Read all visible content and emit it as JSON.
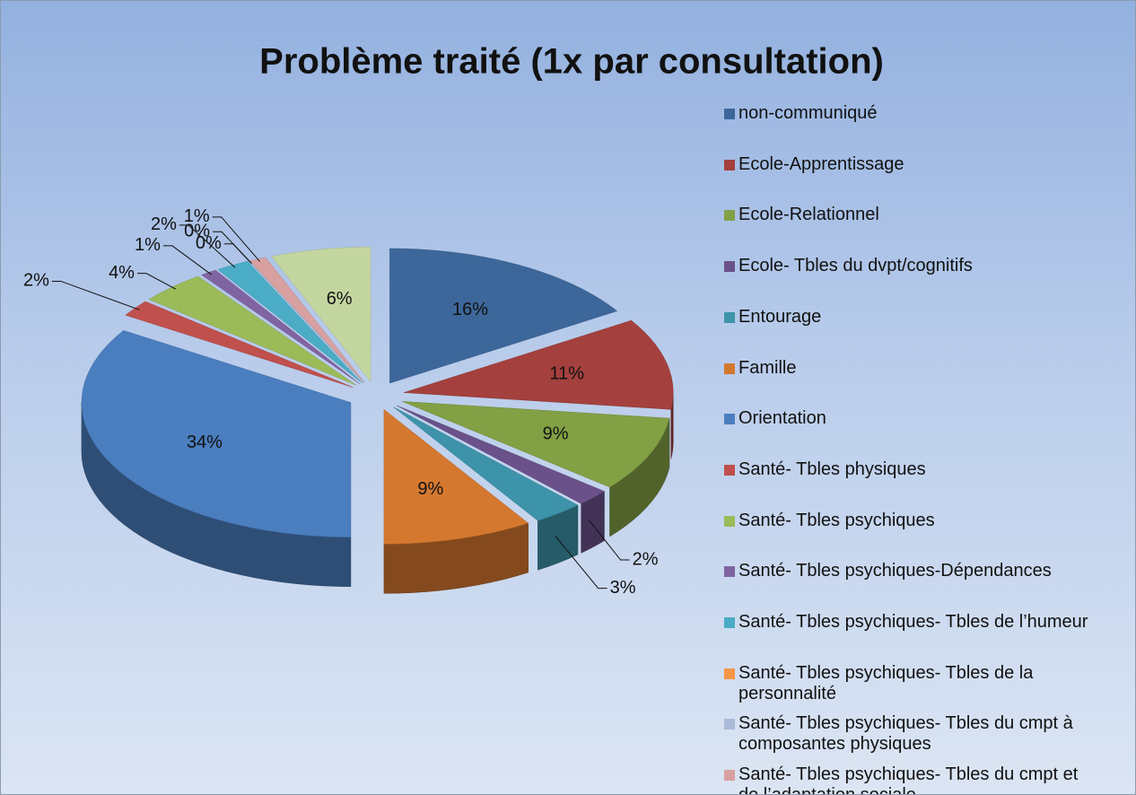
{
  "chart_data": {
    "type": "pie3d",
    "title": "Problème traité (1x par consultation)",
    "categories": [
      "non-communiqué",
      "Ecole-Apprentissage",
      "Ecole-Relationnel",
      "Ecole- Tbles du dvpt/cognitifs",
      "Entourage",
      "Famille",
      "Orientation",
      "Santé- Tbles physiques",
      "Santé- Tbles psychiques",
      "Santé- Tbles psychiques-Dépendances",
      "Santé- Tbles psychiques- Tbles de l’humeur",
      "Santé- Tbles psychiques- Tbles de la personnalité",
      "Santé- Tbles psychiques- Tbles du cmpt à composantes physiques",
      "Santé- Tbles psychiques- Tbles du cmpt et de l’adaptation sociale",
      null
    ],
    "values": [
      16,
      11,
      9,
      2,
      3,
      9,
      34,
      2,
      4,
      1,
      2,
      0,
      0,
      1,
      6
    ],
    "value_labels": [
      "16%",
      "11%",
      "9%",
      "2%",
      "3%",
      "9%",
      "34%",
      "2%",
      "4%",
      "1%",
      "2%",
      "0%",
      "0%",
      "1%",
      "6%"
    ],
    "colors": [
      "#3d679a",
      "#a4403d",
      "#82a044",
      "#6a518a",
      "#3d93a9",
      "#d5782f",
      "#4a7ebf",
      "#c0504d",
      "#9bbb59",
      "#8064a2",
      "#4bacc6",
      "#f79646",
      "#a9bad8",
      "#d9a0a0",
      "#c4d6a0"
    ],
    "legend": "right"
  }
}
